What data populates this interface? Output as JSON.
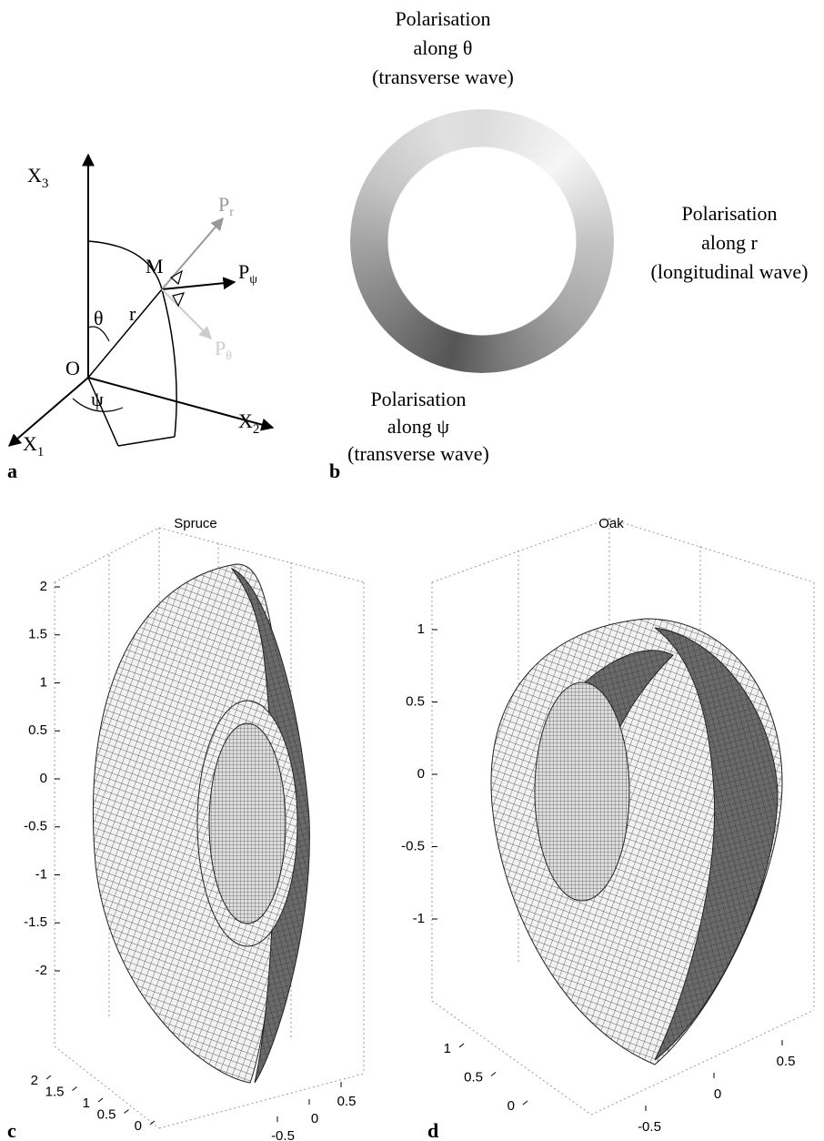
{
  "panel_a": {
    "label": "a",
    "x3": {
      "base": "X",
      "sub": "3"
    },
    "x1": {
      "base": "X",
      "sub": "1"
    },
    "x2": {
      "base": "X",
      "sub": "2"
    },
    "m": "M",
    "o": "O",
    "theta": "θ",
    "r": "r",
    "psi": "ψ",
    "p_r": {
      "base": "P",
      "sub": "r"
    },
    "p_psi": {
      "base": "P",
      "sub": "ψ"
    },
    "p_theta": {
      "base": "P",
      "sub": "θ"
    }
  },
  "panel_b": {
    "label": "b",
    "top": [
      "Polarisation",
      "along θ",
      "(transverse wave)"
    ],
    "right": [
      "Polarisation",
      "along r",
      "(longitudinal wave)"
    ],
    "bottom": [
      "Polarisation",
      "along ψ",
      "(transverse wave)"
    ]
  },
  "panel_c": {
    "label": "c",
    "title": "Spruce",
    "zticks": [
      2,
      1.5,
      1,
      0.5,
      0,
      -0.5,
      -1,
      -1.5,
      -2
    ],
    "xticks": [
      2,
      1.5,
      1,
      0.5,
      0
    ],
    "yticks": [
      0.5,
      0,
      -0.5
    ]
  },
  "panel_d": {
    "label": "d",
    "title": "Oak",
    "zticks": [
      1,
      0.5,
      0,
      -0.5,
      -1
    ],
    "xticks": [
      1,
      0.5,
      0
    ],
    "yticks": [
      0.5,
      0,
      -0.5
    ]
  }
}
